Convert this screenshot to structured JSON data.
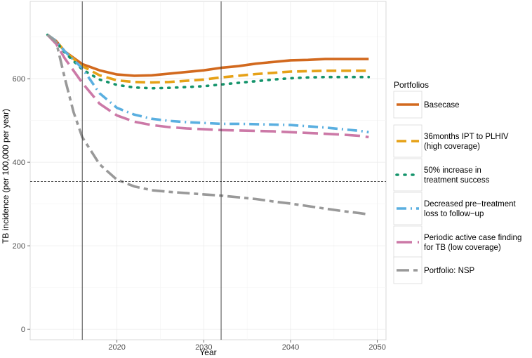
{
  "chart_data": {
    "type": "line",
    "title": "",
    "xlabel": "Year",
    "ylabel": "TB incidence (per 100,000 per year)",
    "xlim": [
      2010,
      2051
    ],
    "ylim": [
      -25,
      785
    ],
    "x_ticks": [
      "2020",
      "2030",
      "2040",
      "2050"
    ],
    "y_ticks": [
      "0",
      "200",
      "400",
      "600"
    ],
    "x_tick_values": [
      2020,
      2030,
      2040,
      2050
    ],
    "y_tick_values": [
      0,
      200,
      400,
      600
    ],
    "grid": true,
    "vertical_reference_lines": [
      2016,
      2032
    ],
    "horizontal_reference_line": 354,
    "legend": {
      "title": "Portfolios",
      "placement": "right"
    },
    "series": [
      {
        "name": "Basecase",
        "color": "#d2691e",
        "style": "solid",
        "x": [
          2012,
          2013,
          2014,
          2016,
          2018,
          2020,
          2022,
          2024,
          2026,
          2028,
          2030,
          2032,
          2034,
          2036,
          2038,
          2040,
          2042,
          2044,
          2046,
          2048,
          2049
        ],
        "y": [
          705,
          690,
          665,
          635,
          620,
          610,
          607,
          608,
          612,
          616,
          620,
          626,
          630,
          636,
          640,
          644,
          645,
          647,
          647,
          647,
          647
        ]
      },
      {
        "name": "36months IPT to PLHIV (high coverage)",
        "color": "#e6a117",
        "style": "dashed",
        "x": [
          2012,
          2013,
          2014,
          2016,
          2018,
          2020,
          2022,
          2024,
          2026,
          2028,
          2030,
          2032,
          2034,
          2036,
          2038,
          2040,
          2042,
          2044,
          2046,
          2048,
          2049
        ],
        "y": [
          705,
          690,
          665,
          630,
          608,
          596,
          592,
          591,
          592,
          595,
          598,
          603,
          607,
          611,
          614,
          617,
          618,
          619,
          619,
          619,
          619
        ]
      },
      {
        "name": "50% increase in treatment success",
        "color": "#14946b",
        "style": "dotted",
        "x": [
          2012,
          2013,
          2014,
          2016,
          2018,
          2020,
          2022,
          2024,
          2026,
          2028,
          2030,
          2032,
          2034,
          2036,
          2038,
          2040,
          2042,
          2044,
          2046,
          2048,
          2049
        ],
        "y": [
          705,
          688,
          662,
          622,
          598,
          585,
          579,
          577,
          578,
          580,
          582,
          586,
          590,
          594,
          598,
          601,
          603,
          604,
          604,
          604,
          604
        ]
      },
      {
        "name": "Decreased pre-treatment loss to follow-up",
        "color": "#5aafe0",
        "style": "dashdot",
        "x": [
          2012,
          2013,
          2014,
          2016,
          2018,
          2020,
          2022,
          2024,
          2026,
          2028,
          2030,
          2032,
          2034,
          2036,
          2038,
          2040,
          2042,
          2044,
          2046,
          2048,
          2049
        ],
        "y": [
          705,
          690,
          665,
          625,
          565,
          530,
          514,
          504,
          499,
          496,
          494,
          492,
          492,
          491,
          490,
          489,
          486,
          483,
          479,
          475,
          472
        ]
      },
      {
        "name": "Periodic active case finding for TB (low coverage)",
        "color": "#cc79a7",
        "style": "longdash",
        "x": [
          2012,
          2013,
          2014,
          2016,
          2018,
          2020,
          2022,
          2024,
          2026,
          2028,
          2030,
          2032,
          2034,
          2036,
          2038,
          2040,
          2042,
          2044,
          2046,
          2048,
          2049
        ],
        "y": [
          705,
          683,
          648,
          590,
          540,
          512,
          497,
          489,
          484,
          481,
          479,
          477,
          476,
          475,
          474,
          472,
          470,
          468,
          466,
          463,
          460
        ]
      },
      {
        "name": "Portfolio: NSP",
        "color": "#999999",
        "style": "twodash",
        "x": [
          2012,
          2013,
          2014,
          2015,
          2016,
          2018,
          2020,
          2022,
          2024,
          2026,
          2028,
          2030,
          2032,
          2034,
          2036,
          2038,
          2040,
          2042,
          2044,
          2046,
          2048,
          2049
        ],
        "y": [
          705,
          688,
          600,
          520,
          460,
          395,
          358,
          342,
          333,
          329,
          326,
          323,
          320,
          316,
          312,
          306,
          301,
          295,
          289,
          283,
          278,
          275
        ]
      }
    ]
  },
  "legend_labels": [
    [
      "Basecase"
    ],
    [
      "36months IPT to PLHIV",
      " (high coverage)"
    ],
    [
      "50% increase in",
      "treatment success"
    ],
    [
      "Decreased pre−treatment",
      "loss to follow−up"
    ],
    [
      "Periodic active case finding",
      "for TB (low coverage)"
    ],
    [
      "Portfolio: NSP"
    ]
  ]
}
